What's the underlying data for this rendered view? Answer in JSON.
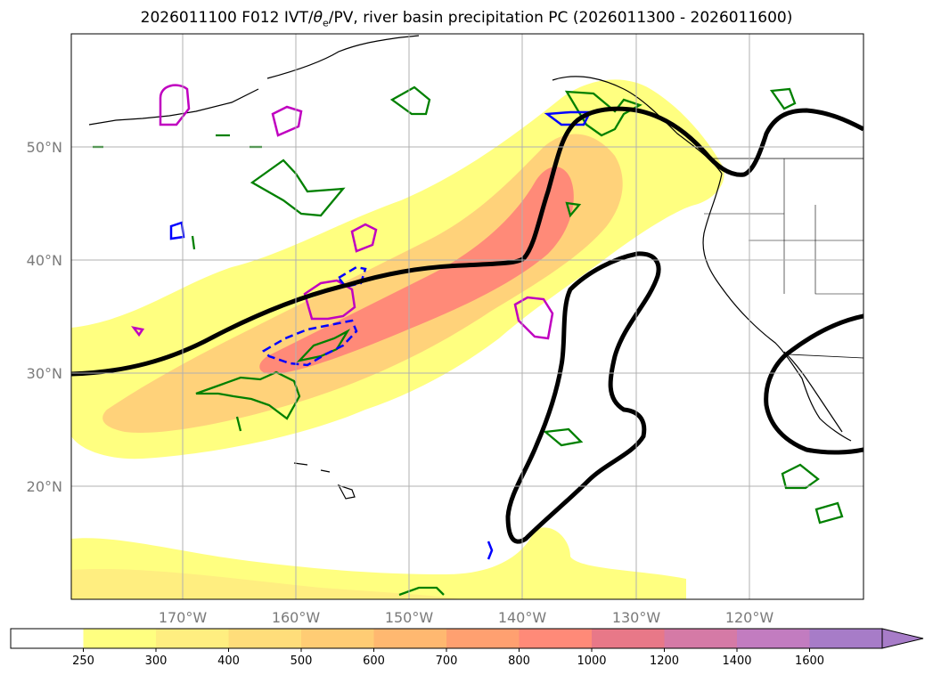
{
  "title": {
    "prefix": "2026011100 F012 IVT/",
    "theta": "θ",
    "theta_sub": "e",
    "suffix": "/PV, river basin precipitation PC (2026011300 - 2026011600)"
  },
  "axes": {
    "lat_labels": [
      "50°N",
      "40°N",
      "30°N",
      "20°N"
    ],
    "lon_labels": [
      "170°W",
      "160°W",
      "150°W",
      "140°W",
      "130°W",
      "120°W"
    ]
  },
  "colorbar": {
    "levels": [
      "250",
      "300",
      "400",
      "500",
      "600",
      "700",
      "800",
      "1000",
      "1200",
      "1400",
      "1600"
    ],
    "colors": [
      "#ffffff",
      "#ffff80",
      "#ffee80",
      "#ffdd7a",
      "#ffcc74",
      "#ffb870",
      "#ffa070",
      "#ff8a78",
      "#e87888",
      "#d57aa6",
      "#c27cc0",
      "#a77cc8"
    ]
  },
  "colors": {
    "ivt_low": "#ffff80",
    "ivt_mid": "#ffd27a",
    "ivt_high": "#ff8a78",
    "pv_contour": "#000000",
    "theta_contour_green": "#008000",
    "theta_contour_magenta": "#c000c0",
    "precip_blue": "#0000ff"
  }
}
